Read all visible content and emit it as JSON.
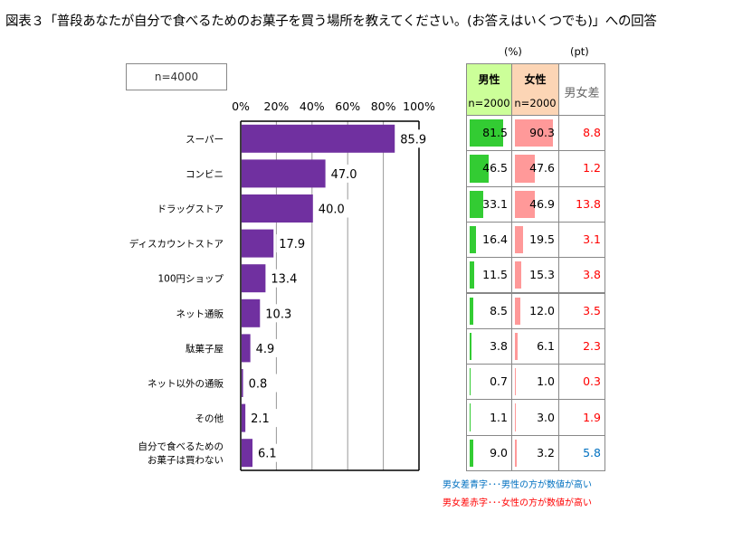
{
  "title": "図表３「普段あなたが自分で食べるためのお菓子を買う場所を教えてください。(お答えはいくつでも)」への回答",
  "sample_box": "n=4000",
  "colors": {
    "bar": "#7030a0",
    "male_bar": "#33cc33",
    "female_bar": "#ff9999",
    "male_header": "#ccff99",
    "female_header": "#fcd5b5",
    "diff_red": "#ff0000",
    "diff_blue": "#0070c0"
  },
  "chart_data": {
    "type": "bar",
    "orientation": "horizontal",
    "title": "",
    "xlabel": "",
    "ylabel": "",
    "xlim": [
      0,
      100
    ],
    "x_ticks": [
      "0%",
      "20%",
      "40%",
      "60%",
      "80%",
      "100%"
    ],
    "grid": true,
    "categories": [
      "スーパー",
      "コンビニ",
      "ドラッグストア",
      "ディスカウントストア",
      "100円ショップ",
      "ネット通販",
      "駄菓子屋",
      "ネット以外の通販",
      "その他",
      "自分で食べるためのお菓子は買わない"
    ],
    "category_lines": [
      [
        "スーパー"
      ],
      [
        "コンビニ"
      ],
      [
        "ドラッグストア"
      ],
      [
        "ディスカウントストア"
      ],
      [
        "100円ショップ"
      ],
      [
        "ネット通販"
      ],
      [
        "駄菓子屋"
      ],
      [
        "ネット以外の通販"
      ],
      [
        "その他"
      ],
      [
        "自分で食べるための",
        "お菓子は買わない"
      ]
    ],
    "values": [
      85.9,
      47.0,
      40.0,
      17.9,
      13.4,
      10.3,
      4.9,
      0.8,
      2.1,
      6.1
    ],
    "value_labels": [
      "85.9",
      "47.0",
      "40.0",
      "17.9",
      "13.4",
      "10.3",
      "4.9",
      "0.8",
      "2.1",
      "6.1"
    ]
  },
  "table": {
    "unit_pct": "(%)",
    "unit_pt": "(pt)",
    "male_label": "男性",
    "male_n": "n=2000",
    "female_label": "女性",
    "female_n": "n=2000",
    "diff_label": "男女差",
    "rows": [
      {
        "male": "81.5",
        "female": "90.3",
        "diff": "8.8",
        "diff_color": "red"
      },
      {
        "male": "46.5",
        "female": "47.6",
        "diff": "1.2",
        "diff_color": "red"
      },
      {
        "male": "33.1",
        "female": "46.9",
        "diff": "13.8",
        "diff_color": "red"
      },
      {
        "male": "16.4",
        "female": "19.5",
        "diff": "3.1",
        "diff_color": "red"
      },
      {
        "male": "11.5",
        "female": "15.3",
        "diff": "3.8",
        "diff_color": "red"
      },
      {
        "male": "8.5",
        "female": "12.0",
        "diff": "3.5",
        "diff_color": "red"
      },
      {
        "male": "3.8",
        "female": "6.1",
        "diff": "2.3",
        "diff_color": "red"
      },
      {
        "male": "0.7",
        "female": "1.0",
        "diff": "0.3",
        "diff_color": "red"
      },
      {
        "male": "1.1",
        "female": "3.0",
        "diff": "1.9",
        "diff_color": "red"
      },
      {
        "male": "9.0",
        "female": "3.2",
        "diff": "5.8",
        "diff_color": "blue"
      }
    ]
  },
  "legend": {
    "blue_note": "男女差青字･･･男性の方が数値が高い",
    "red_note": "男女差赤字･･･女性の方が数値が高い"
  }
}
